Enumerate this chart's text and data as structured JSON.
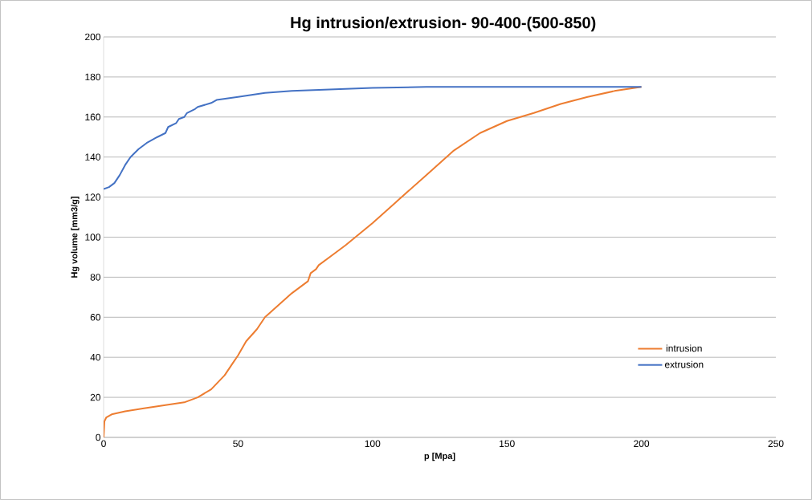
{
  "chart_data": {
    "type": "line",
    "title": "Hg intrusion/extrusion- 90-400-(500-850)",
    "xlabel": "p [Mpa]",
    "ylabel": "Hg volume [mm3/g]",
    "xlim": [
      0,
      250
    ],
    "xticks": [
      0,
      50,
      100,
      150,
      200,
      250
    ],
    "ylim": [
      0,
      200
    ],
    "yticks": [
      0,
      20,
      40,
      60,
      80,
      100,
      120,
      140,
      160,
      180,
      200
    ],
    "grid": "y",
    "legend": "bottom right",
    "series": [
      {
        "name": "intrusion",
        "color": "#ed7d31",
        "x": [
          0,
          0.3,
          1,
          3,
          8,
          15,
          25,
          30,
          35,
          40,
          45,
          48,
          50,
          53,
          57,
          60,
          65,
          70,
          76,
          77,
          79,
          80,
          85,
          90,
          100,
          110,
          120,
          130,
          140,
          150,
          160,
          170,
          180,
          190,
          200
        ],
        "values": [
          0,
          8,
          10,
          11.5,
          13,
          14.5,
          16.5,
          17.5,
          20,
          24,
          31,
          37,
          41,
          48,
          54,
          60,
          66,
          72,
          78,
          82,
          84,
          86,
          91,
          96,
          107,
          119,
          131,
          143,
          152,
          158,
          162,
          166.5,
          170,
          173,
          175
        ]
      },
      {
        "name": "extrusion",
        "color": "#4472c4",
        "x": [
          0,
          2,
          4,
          6,
          8,
          10,
          13,
          16,
          20,
          23,
          24,
          27,
          28,
          30,
          31,
          34,
          35,
          40,
          42,
          50,
          55,
          60,
          70,
          80,
          100,
          120,
          150,
          200
        ],
        "values": [
          124,
          125,
          127,
          131,
          136,
          140,
          144,
          147,
          150,
          152,
          155,
          157,
          159,
          160,
          162,
          164,
          165,
          167,
          168.5,
          170,
          171,
          172,
          173,
          173.5,
          174.5,
          175,
          175,
          175
        ]
      }
    ]
  }
}
